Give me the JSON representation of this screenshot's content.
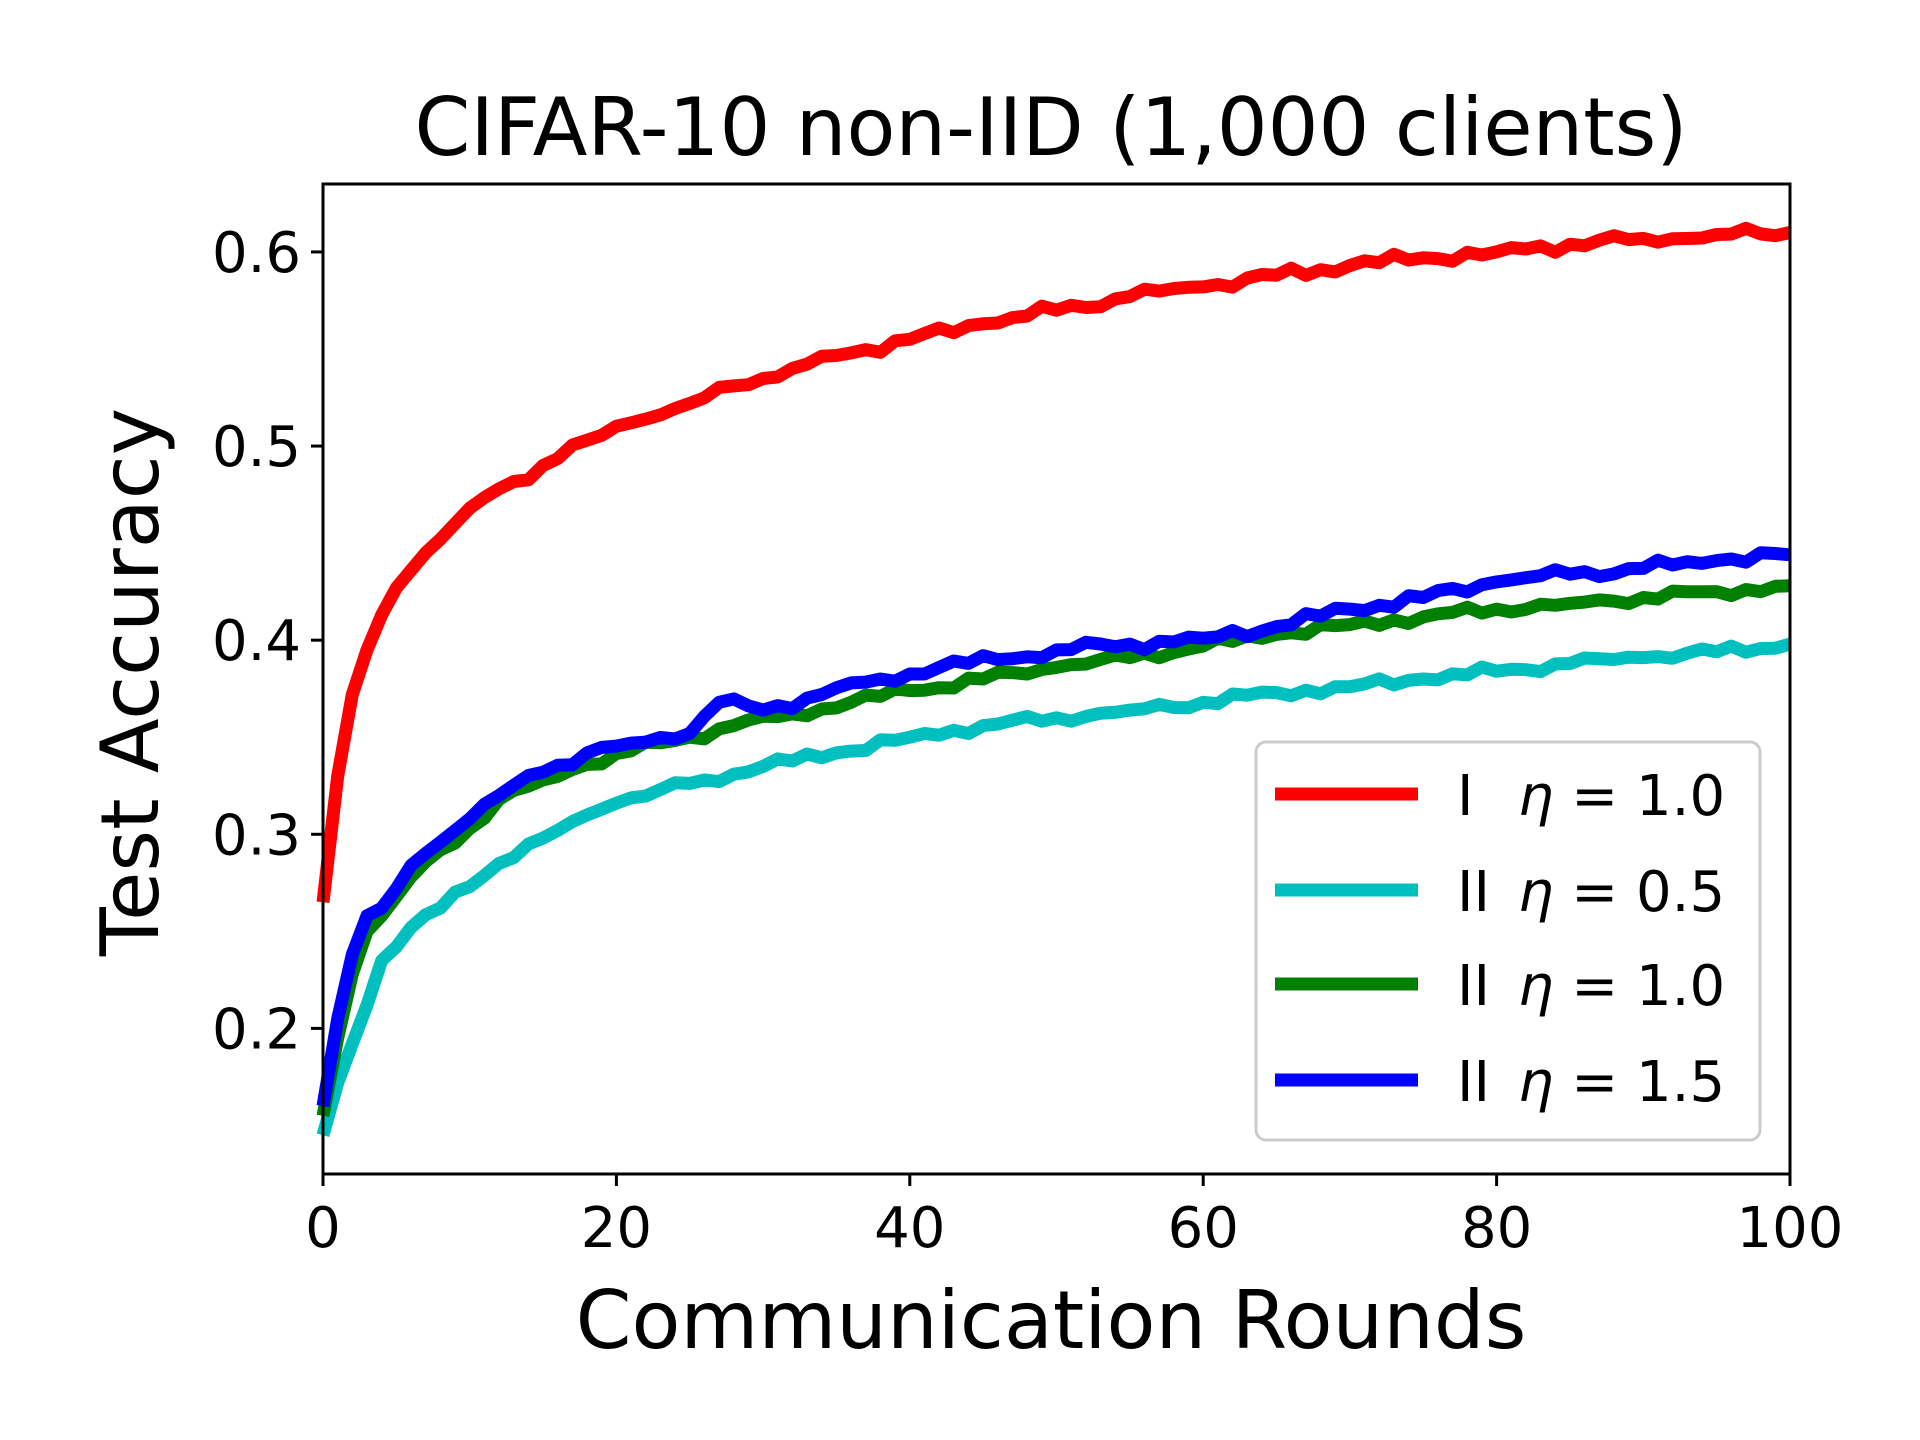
{
  "chart_data": {
    "type": "line",
    "title": "CIFAR-10 non-IID (1,000 clients)",
    "xlabel": "Communication Rounds",
    "ylabel": "Test Accuracy",
    "xlim": [
      0,
      100
    ],
    "ylim": [
      0.125,
      0.635
    ],
    "xticks": [
      0,
      20,
      40,
      60,
      80,
      100
    ],
    "yticks": [
      0.2,
      0.3,
      0.4,
      0.5,
      0.6
    ],
    "grid": false,
    "legend_position": "lower-right",
    "series": [
      {
        "name": "I  η = 1.0",
        "label_prefix": "I",
        "label_math": "η = 1.0",
        "color": "#ff0000",
        "keypoints": [
          [
            0,
            0.265
          ],
          [
            1,
            0.33
          ],
          [
            2,
            0.372
          ],
          [
            3,
            0.395
          ],
          [
            4,
            0.413
          ],
          [
            5,
            0.427
          ],
          [
            6,
            0.436
          ],
          [
            7,
            0.445
          ],
          [
            8,
            0.452
          ],
          [
            9,
            0.46
          ],
          [
            10,
            0.468
          ],
          [
            12,
            0.478
          ],
          [
            15,
            0.49
          ],
          [
            18,
            0.503
          ],
          [
            21,
            0.512
          ],
          [
            25,
            0.522
          ],
          [
            28,
            0.531
          ],
          [
            32,
            0.54
          ],
          [
            36,
            0.548
          ],
          [
            40,
            0.555
          ],
          [
            45,
            0.563
          ],
          [
            50,
            0.57
          ],
          [
            55,
            0.577
          ],
          [
            60,
            0.582
          ],
          [
            65,
            0.588
          ],
          [
            70,
            0.593
          ],
          [
            75,
            0.597
          ],
          [
            80,
            0.6
          ],
          [
            85,
            0.604
          ],
          [
            90,
            0.607
          ],
          [
            95,
            0.609
          ],
          [
            100,
            0.61
          ]
        ],
        "jitter": 0.0035
      },
      {
        "name": "II  η = 0.5",
        "label_prefix": "II",
        "label_math": "η = 0.5",
        "color": "#00bfbf",
        "keypoints": [
          [
            0,
            0.145
          ],
          [
            1,
            0.172
          ],
          [
            2,
            0.192
          ],
          [
            3,
            0.212
          ],
          [
            4,
            0.235
          ],
          [
            5,
            0.242
          ],
          [
            6,
            0.252
          ],
          [
            8,
            0.262
          ],
          [
            10,
            0.273
          ],
          [
            12,
            0.285
          ],
          [
            14,
            0.295
          ],
          [
            16,
            0.302
          ],
          [
            18,
            0.31
          ],
          [
            20,
            0.316
          ],
          [
            23,
            0.323
          ],
          [
            26,
            0.328
          ],
          [
            30,
            0.335
          ],
          [
            35,
            0.342
          ],
          [
            40,
            0.35
          ],
          [
            45,
            0.356
          ],
          [
            50,
            0.36
          ],
          [
            55,
            0.364
          ],
          [
            60,
            0.368
          ],
          [
            65,
            0.373
          ],
          [
            70,
            0.376
          ],
          [
            75,
            0.38
          ],
          [
            80,
            0.384
          ],
          [
            85,
            0.388
          ],
          [
            90,
            0.391
          ],
          [
            95,
            0.394
          ],
          [
            100,
            0.398
          ]
        ],
        "jitter": 0.003
      },
      {
        "name": "II  η = 1.0",
        "label_prefix": "II",
        "label_math": "η = 1.0",
        "color": "#008000",
        "keypoints": [
          [
            0,
            0.155
          ],
          [
            1,
            0.195
          ],
          [
            2,
            0.228
          ],
          [
            3,
            0.25
          ],
          [
            4,
            0.258
          ],
          [
            5,
            0.268
          ],
          [
            6,
            0.278
          ],
          [
            8,
            0.292
          ],
          [
            10,
            0.303
          ],
          [
            12,
            0.318
          ],
          [
            15,
            0.328
          ],
          [
            18,
            0.336
          ],
          [
            21,
            0.343
          ],
          [
            25,
            0.35
          ],
          [
            28,
            0.356
          ],
          [
            32,
            0.362
          ],
          [
            36,
            0.368
          ],
          [
            40,
            0.374
          ],
          [
            45,
            0.38
          ],
          [
            50,
            0.386
          ],
          [
            55,
            0.391
          ],
          [
            60,
            0.397
          ],
          [
            65,
            0.403
          ],
          [
            70,
            0.408
          ],
          [
            75,
            0.412
          ],
          [
            80,
            0.416
          ],
          [
            85,
            0.419
          ],
          [
            90,
            0.422
          ],
          [
            95,
            0.425
          ],
          [
            100,
            0.428
          ]
        ],
        "jitter": 0.003
      },
      {
        "name": "II  η = 1.5",
        "label_prefix": "II",
        "label_math": "η = 1.5",
        "color": "#0000ff",
        "keypoints": [
          [
            0,
            0.16
          ],
          [
            1,
            0.205
          ],
          [
            2,
            0.238
          ],
          [
            3,
            0.258
          ],
          [
            4,
            0.262
          ],
          [
            5,
            0.272
          ],
          [
            6,
            0.284
          ],
          [
            8,
            0.296
          ],
          [
            10,
            0.308
          ],
          [
            12,
            0.32
          ],
          [
            15,
            0.332
          ],
          [
            18,
            0.342
          ],
          [
            21,
            0.347
          ],
          [
            25,
            0.352
          ],
          [
            27,
            0.368
          ],
          [
            30,
            0.364
          ],
          [
            34,
            0.372
          ],
          [
            38,
            0.38
          ],
          [
            42,
            0.386
          ],
          [
            46,
            0.39
          ],
          [
            50,
            0.395
          ],
          [
            55,
            0.398
          ],
          [
            60,
            0.401
          ],
          [
            65,
            0.407
          ],
          [
            70,
            0.416
          ],
          [
            75,
            0.422
          ],
          [
            80,
            0.43
          ],
          [
            85,
            0.434
          ],
          [
            90,
            0.437
          ],
          [
            95,
            0.441
          ],
          [
            100,
            0.444
          ]
        ],
        "jitter": 0.0035
      }
    ]
  }
}
